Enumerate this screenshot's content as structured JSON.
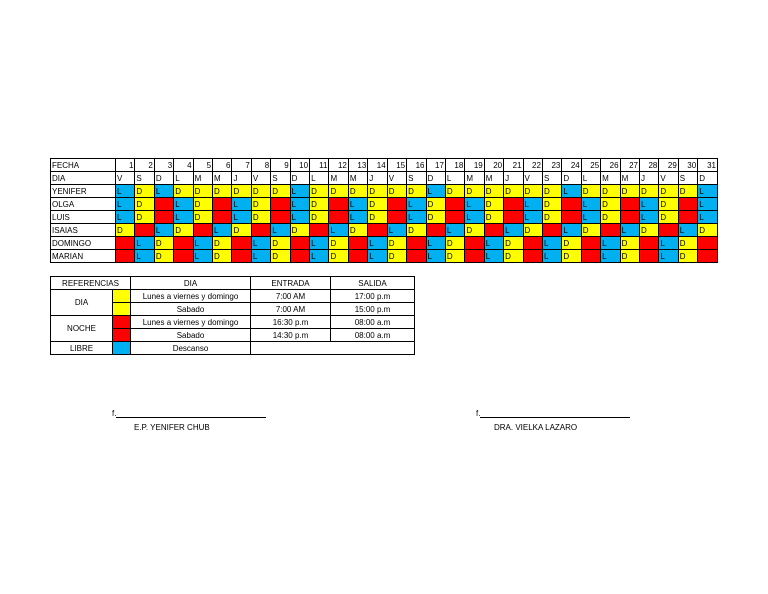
{
  "schedule": {
    "header_label": "FECHA",
    "day_label": "DIA",
    "dates": [
      "1",
      "2",
      "3",
      "4",
      "5",
      "6",
      "7",
      "8",
      "9",
      "10",
      "11",
      "12",
      "13",
      "14",
      "15",
      "16",
      "17",
      "18",
      "19",
      "20",
      "21",
      "22",
      "23",
      "24",
      "25",
      "26",
      "27",
      "28",
      "29",
      "30",
      "31"
    ],
    "weekdays": [
      "V",
      "S",
      "D",
      "L",
      "M",
      "M",
      "J",
      "V",
      "S",
      "D",
      "L",
      "M",
      "M",
      "J",
      "V",
      "S",
      "D",
      "L",
      "M",
      "M",
      "J",
      "V",
      "S",
      "D",
      "L",
      "M",
      "M",
      "J",
      "V",
      "S",
      "D"
    ],
    "rows": [
      {
        "name": "YENIFER",
        "shifts": [
          "L",
          "D",
          "L",
          "D",
          "D",
          "D",
          "D",
          "D",
          "D",
          "L",
          "D",
          "D",
          "D",
          "D",
          "D",
          "D",
          "L",
          "D",
          "D",
          "D",
          "D",
          "D",
          "D",
          "L",
          "D",
          "D",
          "D",
          "D",
          "D",
          "D",
          "L"
        ]
      },
      {
        "name": "OLGA",
        "shifts": [
          "L",
          "D",
          "N",
          "L",
          "D",
          "N",
          "L",
          "D",
          "N",
          "L",
          "D",
          "N",
          "L",
          "D",
          "N",
          "L",
          "D",
          "N",
          "L",
          "D",
          "N",
          "L",
          "D",
          "N",
          "L",
          "D",
          "N",
          "L",
          "D",
          "N",
          "L"
        ]
      },
      {
        "name": "LUIS",
        "shifts": [
          "L",
          "D",
          "N",
          "L",
          "D",
          "N",
          "L",
          "D",
          "N",
          "L",
          "D",
          "N",
          "L",
          "D",
          "N",
          "L",
          "D",
          "N",
          "L",
          "D",
          "N",
          "L",
          "D",
          "N",
          "L",
          "D",
          "N",
          "L",
          "D",
          "N",
          "L"
        ]
      },
      {
        "name": "ISAIAS",
        "shifts": [
          "D",
          "N",
          "L",
          "D",
          "N",
          "L",
          "D",
          "N",
          "L",
          "D",
          "N",
          "L",
          "D",
          "N",
          "L",
          "D",
          "N",
          "L",
          "D",
          "N",
          "L",
          "D",
          "N",
          "L",
          "D",
          "N",
          "L",
          "D",
          "N",
          "L",
          "D"
        ]
      },
      {
        "name": "DOMINGO",
        "shifts": [
          "N",
          "L",
          "D",
          "N",
          "L",
          "D",
          "N",
          "L",
          "D",
          "N",
          "L",
          "D",
          "N",
          "L",
          "D",
          "N",
          "L",
          "D",
          "N",
          "L",
          "D",
          "N",
          "L",
          "D",
          "N",
          "L",
          "D",
          "N",
          "L",
          "D",
          "N"
        ]
      },
      {
        "name": "MARIAN",
        "shifts": [
          "N",
          "L",
          "D",
          "N",
          "L",
          "D",
          "N",
          "L",
          "D",
          "N",
          "L",
          "D",
          "N",
          "L",
          "D",
          "N",
          "L",
          "D",
          "N",
          "L",
          "D",
          "N",
          "L",
          "D",
          "N",
          "L",
          "D",
          "N",
          "L",
          "D",
          "N"
        ]
      }
    ]
  },
  "refs": {
    "headers": {
      "referencias": "REFERENCIAS",
      "dia": "DIA",
      "entrada": "ENTRADA",
      "salida": "SALIDA"
    },
    "dia": {
      "label": "DIA",
      "rows": [
        {
          "desc": "Lunes a viernes y domingo",
          "entrada": "7:00 AM",
          "salida": "17:00 p.m"
        },
        {
          "desc": "Sabado",
          "entrada": "7:00 AM",
          "salida": "15:00 p.m"
        }
      ]
    },
    "noche": {
      "label": "NOCHE",
      "rows": [
        {
          "desc": "Lunes a viernes y domingo",
          "entrada": "16:30 p.m",
          "salida": "08:00 a.m"
        },
        {
          "desc": "Sabado",
          "entrada": "14:30 p.m",
          "salida": "08:00 a.m"
        }
      ]
    },
    "libre": {
      "label": "LIBRE",
      "desc": "Descanso"
    }
  },
  "colors": {
    "D": "#ffff00",
    "N": "#ff0000",
    "L": "#00b0f0"
  },
  "signatures": [
    {
      "prefix": "f.",
      "name": "E.P. YENIFER CHUB"
    },
    {
      "prefix": "f.",
      "name": "DRA. VIELKA LAZARO"
    }
  ]
}
